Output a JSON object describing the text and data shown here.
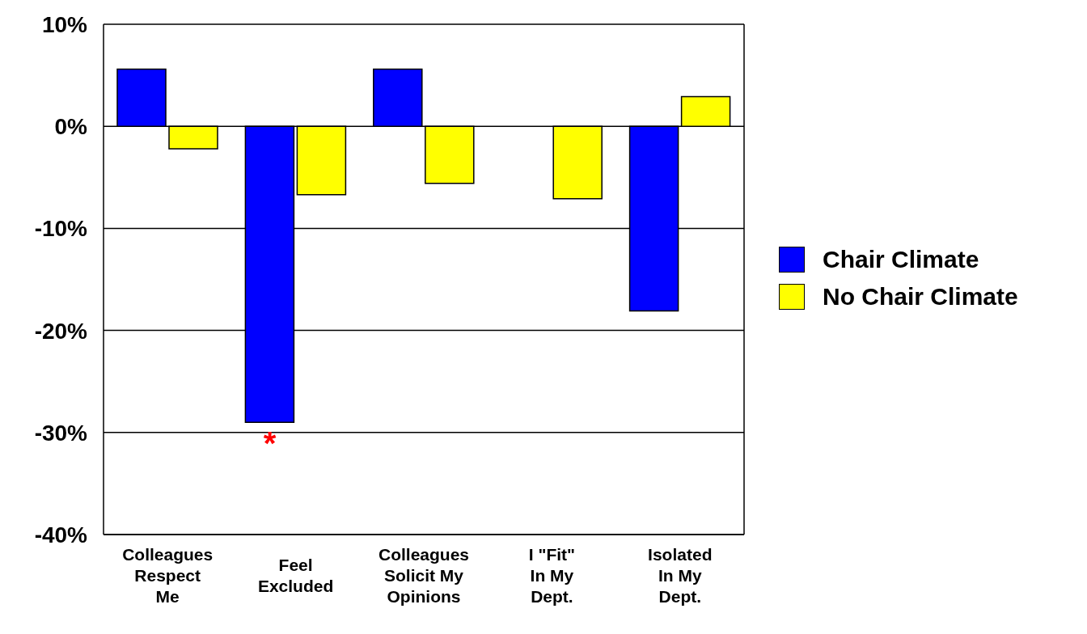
{
  "chart_data": {
    "type": "bar",
    "categories": [
      "Colleagues\nRespect\nMe",
      "Feel\nExcluded",
      "Colleagues\nSolicit My\nOpinions",
      "I \"Fit\"\nIn My\nDept.",
      "Isolated\nIn My\nDept."
    ],
    "series": [
      {
        "name": "Chair Climate",
        "color": "#0000ff",
        "values": [
          5.6,
          -29.0,
          5.6,
          null,
          -18.1
        ]
      },
      {
        "name": "No Chair Climate",
        "color": "#ffff00",
        "values": [
          -2.2,
          -6.7,
          -5.6,
          -7.1,
          2.9
        ]
      }
    ],
    "ylim": [
      -40,
      10
    ],
    "yticks": [
      {
        "value": -40,
        "label": "-40%"
      },
      {
        "value": -30,
        "label": "-30%"
      },
      {
        "value": -20,
        "label": "-20%"
      },
      {
        "value": -10,
        "label": "-10%"
      },
      {
        "value": 0,
        "label": "0%"
      },
      {
        "value": 10,
        "label": "10%"
      }
    ],
    "grid": "y",
    "legend": "right",
    "annotations": [
      {
        "text": "*",
        "x": "Feel\nExcluded",
        "y": -29.0
      }
    ]
  }
}
